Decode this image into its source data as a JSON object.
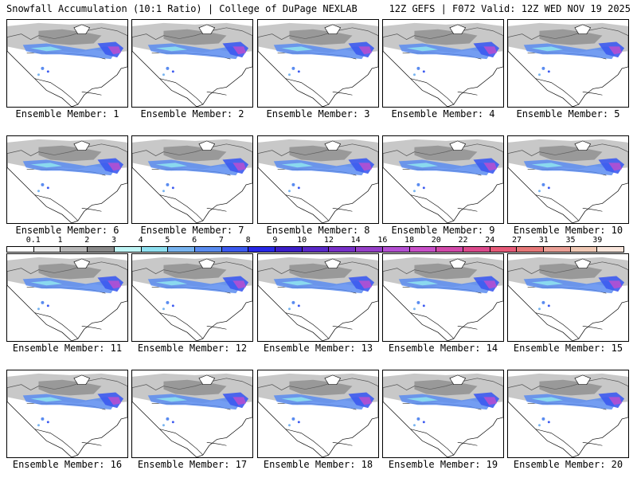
{
  "header": {
    "left_title": "Snowfall Accumulation (10:1 Ratio) | College of DuPage NEXLAB",
    "right_title": "12Z GEFS | F072 Valid: 12Z WED NOV 19 2025"
  },
  "members": [
    "Ensemble Member: 1",
    "Ensemble Member: 2",
    "Ensemble Member: 3",
    "Ensemble Member: 4",
    "Ensemble Member: 5",
    "Ensemble Member: 6",
    "Ensemble Member: 7",
    "Ensemble Member: 8",
    "Ensemble Member: 9",
    "Ensemble Member: 10",
    "Ensemble Member: 11",
    "Ensemble Member: 12",
    "Ensemble Member: 13",
    "Ensemble Member: 14",
    "Ensemble Member: 15",
    "Ensemble Member: 16",
    "Ensemble Member: 17",
    "Ensemble Member: 18",
    "Ensemble Member: 19",
    "Ensemble Member: 20"
  ],
  "colorbar": {
    "labels": [
      "0.1",
      "1",
      "2",
      "3",
      "4",
      "5",
      "6",
      "7",
      "8",
      "9",
      "10",
      "12",
      "14",
      "16",
      "18",
      "20",
      "22",
      "24",
      "27",
      "31",
      "35",
      "39"
    ],
    "colors": [
      "#ffffff",
      "#e8e8e8",
      "#b8b8b8",
      "#8a8a8a",
      "#bff5f5",
      "#8ee0f0",
      "#78b4f0",
      "#5a8cf0",
      "#3c5af0",
      "#2828e6",
      "#3c1ec8",
      "#5a28c8",
      "#7830c8",
      "#9640c8",
      "#b450d2",
      "#c850c8",
      "#d24aaa",
      "#dc4a8c",
      "#e65a78",
      "#e67878",
      "#eba096",
      "#f0c8b4",
      "#fae6dc"
    ]
  }
}
